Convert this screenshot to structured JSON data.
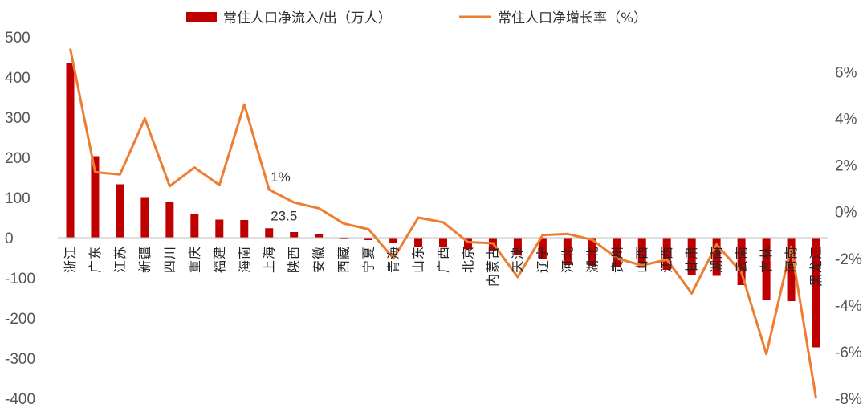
{
  "chart_data": {
    "type": "bar+line",
    "categories": [
      "浙江",
      "广东",
      "江苏",
      "新疆",
      "四川",
      "重庆",
      "福建",
      "海南",
      "上海",
      "陕西",
      "安徽",
      "西藏",
      "宁夏",
      "青海",
      "山东",
      "广西",
      "北京",
      "内蒙古",
      "天津",
      "辽宁",
      "河北",
      "湖北",
      "贵州",
      "山西",
      "江西",
      "甘肃",
      "湖南",
      "云南",
      "吉林",
      "河南",
      "黑龙江"
    ],
    "series": [
      {
        "name": "常住人口净流入/出（万人）",
        "axis": "left",
        "type": "bar",
        "color": "#C00000",
        "values": [
          434,
          203,
          133,
          101,
          90,
          58,
          45,
          44,
          23.5,
          14,
          10,
          -3,
          -6,
          -14,
          -22,
          -23,
          -28,
          -33,
          -42,
          -52,
          -68,
          -70,
          -72,
          -75,
          -80,
          -93,
          -95,
          -118,
          -156,
          -158,
          -273
        ]
      },
      {
        "name": "常住人口净增长率（%）",
        "axis": "right",
        "type": "line",
        "color": "#ED7D31",
        "values": [
          7.0,
          1.7,
          1.6,
          4.0,
          1.1,
          1.9,
          1.15,
          4.6,
          0.95,
          0.4,
          0.15,
          -0.5,
          -0.75,
          -2.0,
          -0.25,
          -0.45,
          -1.3,
          -1.35,
          -2.8,
          -1.0,
          -0.95,
          -1.2,
          -2.0,
          -2.3,
          -2.05,
          -3.5,
          -1.4,
          -2.6,
          -6.1,
          -1.5,
          -8.0
        ]
      }
    ],
    "y_left": {
      "ylim": [
        -400,
        500
      ],
      "ticks": [
        500,
        400,
        300,
        200,
        100,
        0,
        -100,
        -200,
        -300,
        -400
      ]
    },
    "y_right": {
      "ylim": [
        -8,
        7.5
      ],
      "ticks": [
        "6%",
        "4%",
        "2%",
        "0%",
        "-2%",
        "-4%",
        "-6%",
        "-8%"
      ]
    },
    "annotations": [
      {
        "text": "1%",
        "category": "上海",
        "series": 1
      },
      {
        "text": "23.5",
        "category": "上海",
        "series": 0
      }
    ],
    "legend": "top-center",
    "grid": false
  }
}
